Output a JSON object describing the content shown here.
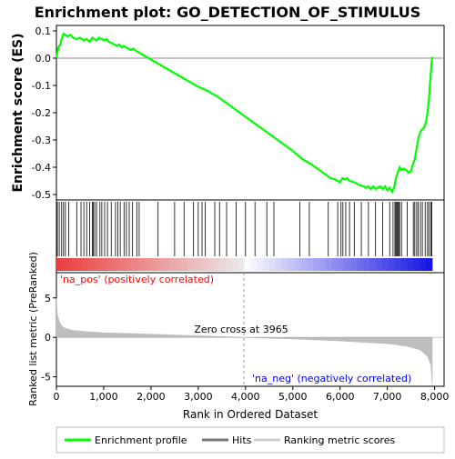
{
  "chart_data": {
    "type": "line",
    "title": "Enrichment plot: GO_DETECTION_OF_STIMULUS",
    "top_panel": {
      "ylabel": "Enrichment score (ES)",
      "ylim": [
        -0.52,
        0.12
      ],
      "yticks": [
        0.1,
        0.0,
        -0.1,
        -0.2,
        -0.3,
        -0.4,
        -0.5
      ],
      "ytick_labels": [
        "0.1",
        "0.0",
        "-0.1",
        "-0.2",
        "-0.3",
        "-0.4",
        "-0.5"
      ],
      "series": [
        {
          "name": "Enrichment profile",
          "color": "#00ff00",
          "x": [
            0,
            40,
            80,
            110,
            150,
            190,
            230,
            300,
            350,
            420,
            500,
            580,
            640,
            700,
            760,
            800,
            850,
            900,
            960,
            1010,
            1060,
            1110,
            1170,
            1230,
            1280,
            1330,
            1380,
            1420,
            1470,
            1520,
            1570,
            1620,
            1660,
            1700,
            1760,
            1800,
            1850,
            1900,
            1950,
            2000,
            2100,
            2200,
            2400,
            2600,
            2800,
            3000,
            3200,
            3400,
            3600,
            3800,
            4000,
            4200,
            4400,
            4600,
            4800,
            5000,
            5200,
            5300,
            5400,
            5600,
            5800,
            5900,
            6000,
            6050,
            6100,
            6150,
            6200,
            6300,
            6400,
            6500,
            6550,
            6600,
            6650,
            6700,
            6750,
            6800,
            6850,
            6900,
            6950,
            7000,
            7050,
            7100,
            7150,
            7180,
            7220,
            7260,
            7300,
            7350,
            7400,
            7450,
            7500,
            7540,
            7580,
            7620,
            7660,
            7700,
            7740,
            7780,
            7820,
            7850,
            7880,
            7900,
            7920,
            7940,
            7950
          ],
          "y": [
            0.0,
            0.04,
            0.05,
            0.07,
            0.09,
            0.085,
            0.08,
            0.085,
            0.075,
            0.07,
            0.075,
            0.065,
            0.07,
            0.06,
            0.075,
            0.07,
            0.065,
            0.075,
            0.07,
            0.065,
            0.07,
            0.06,
            0.055,
            0.05,
            0.045,
            0.05,
            0.04,
            0.045,
            0.04,
            0.035,
            0.03,
            0.035,
            0.03,
            0.025,
            0.02,
            0.015,
            0.01,
            0.005,
            0.0,
            -0.005,
            -0.015,
            -0.025,
            -0.045,
            -0.065,
            -0.085,
            -0.105,
            -0.12,
            -0.14,
            -0.165,
            -0.19,
            -0.215,
            -0.24,
            -0.265,
            -0.29,
            -0.315,
            -0.34,
            -0.37,
            -0.38,
            -0.39,
            -0.415,
            -0.44,
            -0.445,
            -0.455,
            -0.44,
            -0.445,
            -0.44,
            -0.45,
            -0.455,
            -0.465,
            -0.47,
            -0.475,
            -0.47,
            -0.48,
            -0.47,
            -0.48,
            -0.475,
            -0.47,
            -0.48,
            -0.47,
            -0.485,
            -0.475,
            -0.49,
            -0.47,
            -0.44,
            -0.42,
            -0.4,
            -0.41,
            -0.405,
            -0.41,
            -0.42,
            -0.415,
            -0.39,
            -0.37,
            -0.33,
            -0.29,
            -0.27,
            -0.26,
            -0.255,
            -0.23,
            -0.2,
            -0.15,
            -0.1,
            -0.05,
            -0.01,
            0.005
          ]
        }
      ]
    },
    "hits_panel": {
      "name": "Hits",
      "positions": [
        20,
        60,
        110,
        150,
        190,
        260,
        430,
        520,
        580,
        640,
        700,
        760,
        780,
        810,
        850,
        920,
        960,
        1020,
        1080,
        1160,
        1250,
        1300,
        1350,
        1430,
        1480,
        1540,
        1610,
        1700,
        1750,
        2150,
        2500,
        2700,
        2900,
        3000,
        3080,
        3150,
        3350,
        3450,
        3600,
        3800,
        4000,
        4200,
        4450,
        4600,
        5150,
        5350,
        5750,
        5950,
        6020,
        6060,
        6120,
        6200,
        6300,
        6450,
        6600,
        6750,
        6900,
        7050,
        7120,
        7160,
        7180,
        7200,
        7220,
        7240,
        7260,
        7300,
        7420,
        7550,
        7580,
        7620,
        7650,
        7700,
        7740,
        7800,
        7850,
        7880,
        7920,
        7940
      ]
    },
    "bottom_panel": {
      "name": "Ranking metric scores",
      "color": "#bebebe",
      "ylabel": "Ranked list metric (PreRanked)",
      "xlabel": "Rank in Ordered Dataset",
      "ylim": [
        -6.2,
        8.2
      ],
      "yticks": [
        5,
        0,
        -5
      ],
      "ytick_labels": [
        "5",
        "0",
        "-5"
      ],
      "xlim": [
        0,
        8200
      ],
      "xticks": [
        0,
        1000,
        2000,
        3000,
        4000,
        5000,
        6000,
        7000,
        8000
      ],
      "xtick_labels": [
        "0",
        "1,000",
        "2,000",
        "3,000",
        "4,000",
        "5,000",
        "6,000",
        "7,000",
        "8,000"
      ],
      "x": [
        0,
        20,
        60,
        120,
        200,
        350,
        600,
        1000,
        2000,
        3000,
        3965,
        5000,
        6000,
        7000,
        7400,
        7700,
        7850,
        7920,
        7950
      ],
      "y": [
        5.0,
        3.0,
        2.0,
        1.4,
        1.1,
        0.9,
        0.75,
        0.6,
        0.4,
        0.2,
        0.0,
        -0.2,
        -0.45,
        -0.8,
        -1.1,
        -1.6,
        -2.4,
        -3.5,
        -6.0
      ],
      "zero_cross_x": 3965,
      "annotations": [
        "Zero cross at 3965",
        "'na_pos' (positively correlated)",
        "'na_neg' (negatively correlated)"
      ],
      "pos_label_color": "#ff0000",
      "neg_label_color": "#0000ff"
    },
    "legend": {
      "placement": "bottom",
      "items": [
        "Enrichment profile",
        "Hits",
        "Ranking metric scores"
      ]
    },
    "n_genes": 7950
  }
}
